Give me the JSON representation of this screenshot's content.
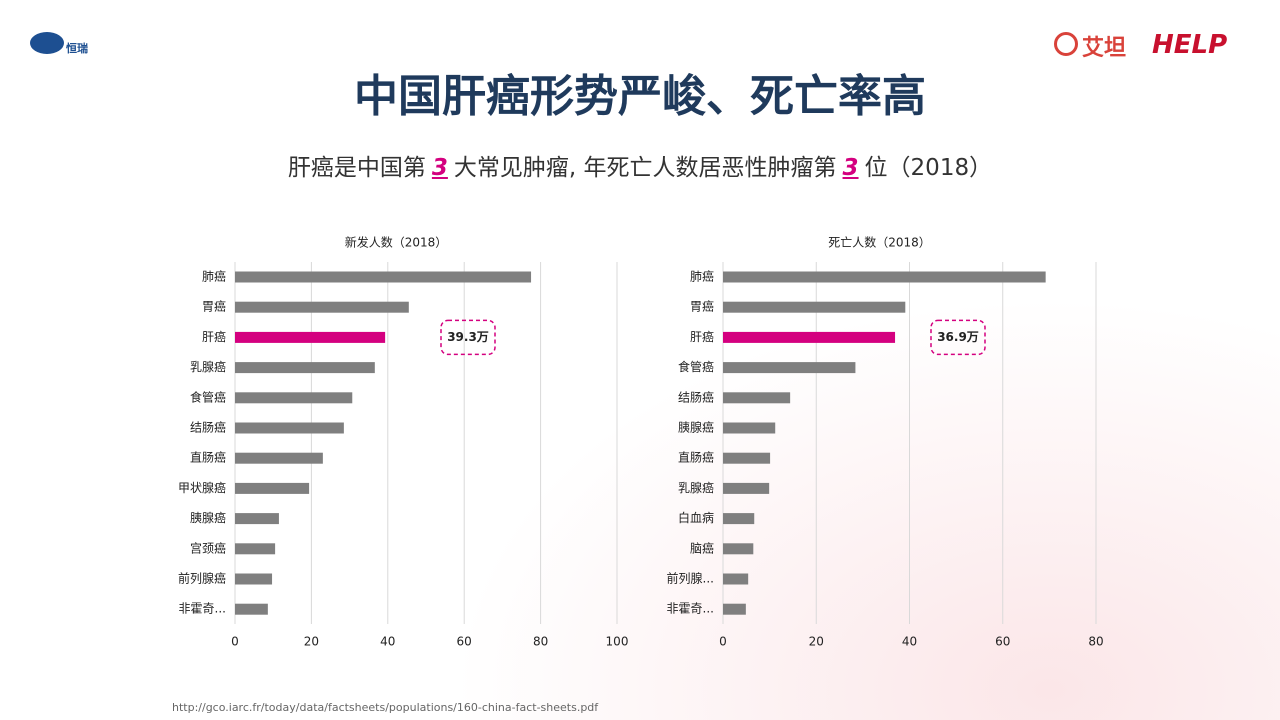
{
  "slide": {
    "title": "中国肝癌形势严峻、死亡率高",
    "subtitle": [
      "肝癌是中国第",
      "3",
      "大常见肿瘤, 年死亡人数居恶性肿瘤第",
      "3",
      "位（2018）"
    ],
    "source": "http://gco.iarc.fr/today/data/factsheets/populations/160-china-fact-sheets.pdf",
    "logos": [
      "恒瑞",
      "艾坦",
      "HELP"
    ]
  },
  "chart_data": [
    {
      "type": "bar",
      "orientation": "horizontal",
      "title": "新发人数（2018）",
      "categories": [
        "肺癌",
        "胃癌",
        "肝癌",
        "乳腺癌",
        "食管癌",
        "结肠癌",
        "直肠癌",
        "甲状腺癌",
        "胰腺癌",
        "宫颈癌",
        "前列腺癌",
        "非霍奇..."
      ],
      "values": [
        77.5,
        45.5,
        39.3,
        36.6,
        30.7,
        28.5,
        23.0,
        19.4,
        11.5,
        10.5,
        9.7,
        8.6
      ],
      "value_labels": [
        null,
        null,
        "39.3万",
        null,
        null,
        null,
        null,
        null,
        null,
        null,
        null,
        null
      ],
      "colors": [
        "#7f7f7f",
        "#7f7f7f",
        "#d4007f",
        "#7f7f7f",
        "#7f7f7f",
        "#7f7f7f",
        "#7f7f7f",
        "#7f7f7f",
        "#7f7f7f",
        "#7f7f7f",
        "#7f7f7f",
        "#7f7f7f"
      ],
      "xlim": [
        0,
        100
      ],
      "xticks": [
        0,
        20,
        40,
        60,
        80,
        100
      ],
      "grid": true
    },
    {
      "type": "bar",
      "orientation": "horizontal",
      "title": "死亡人数（2018）",
      "categories": [
        "肺癌",
        "胃癌",
        "肝癌",
        "食管癌",
        "结肠癌",
        "胰腺癌",
        "直肠癌",
        "乳腺癌",
        "白血病",
        "脑癌",
        "前列腺...",
        "非霍奇..."
      ],
      "values": [
        69.2,
        39.1,
        36.9,
        28.4,
        14.4,
        11.2,
        10.1,
        9.9,
        6.7,
        6.5,
        5.4,
        4.9
      ],
      "value_labels": [
        null,
        null,
        "36.9万",
        null,
        null,
        null,
        null,
        null,
        null,
        null,
        null,
        null
      ],
      "colors": [
        "#7f7f7f",
        "#7f7f7f",
        "#d4007f",
        "#7f7f7f",
        "#7f7f7f",
        "#7f7f7f",
        "#7f7f7f",
        "#7f7f7f",
        "#7f7f7f",
        "#7f7f7f",
        "#7f7f7f",
        "#7f7f7f"
      ],
      "xlim": [
        0,
        80
      ],
      "xticks": [
        0,
        20,
        40,
        60,
        80
      ],
      "grid": true
    }
  ]
}
